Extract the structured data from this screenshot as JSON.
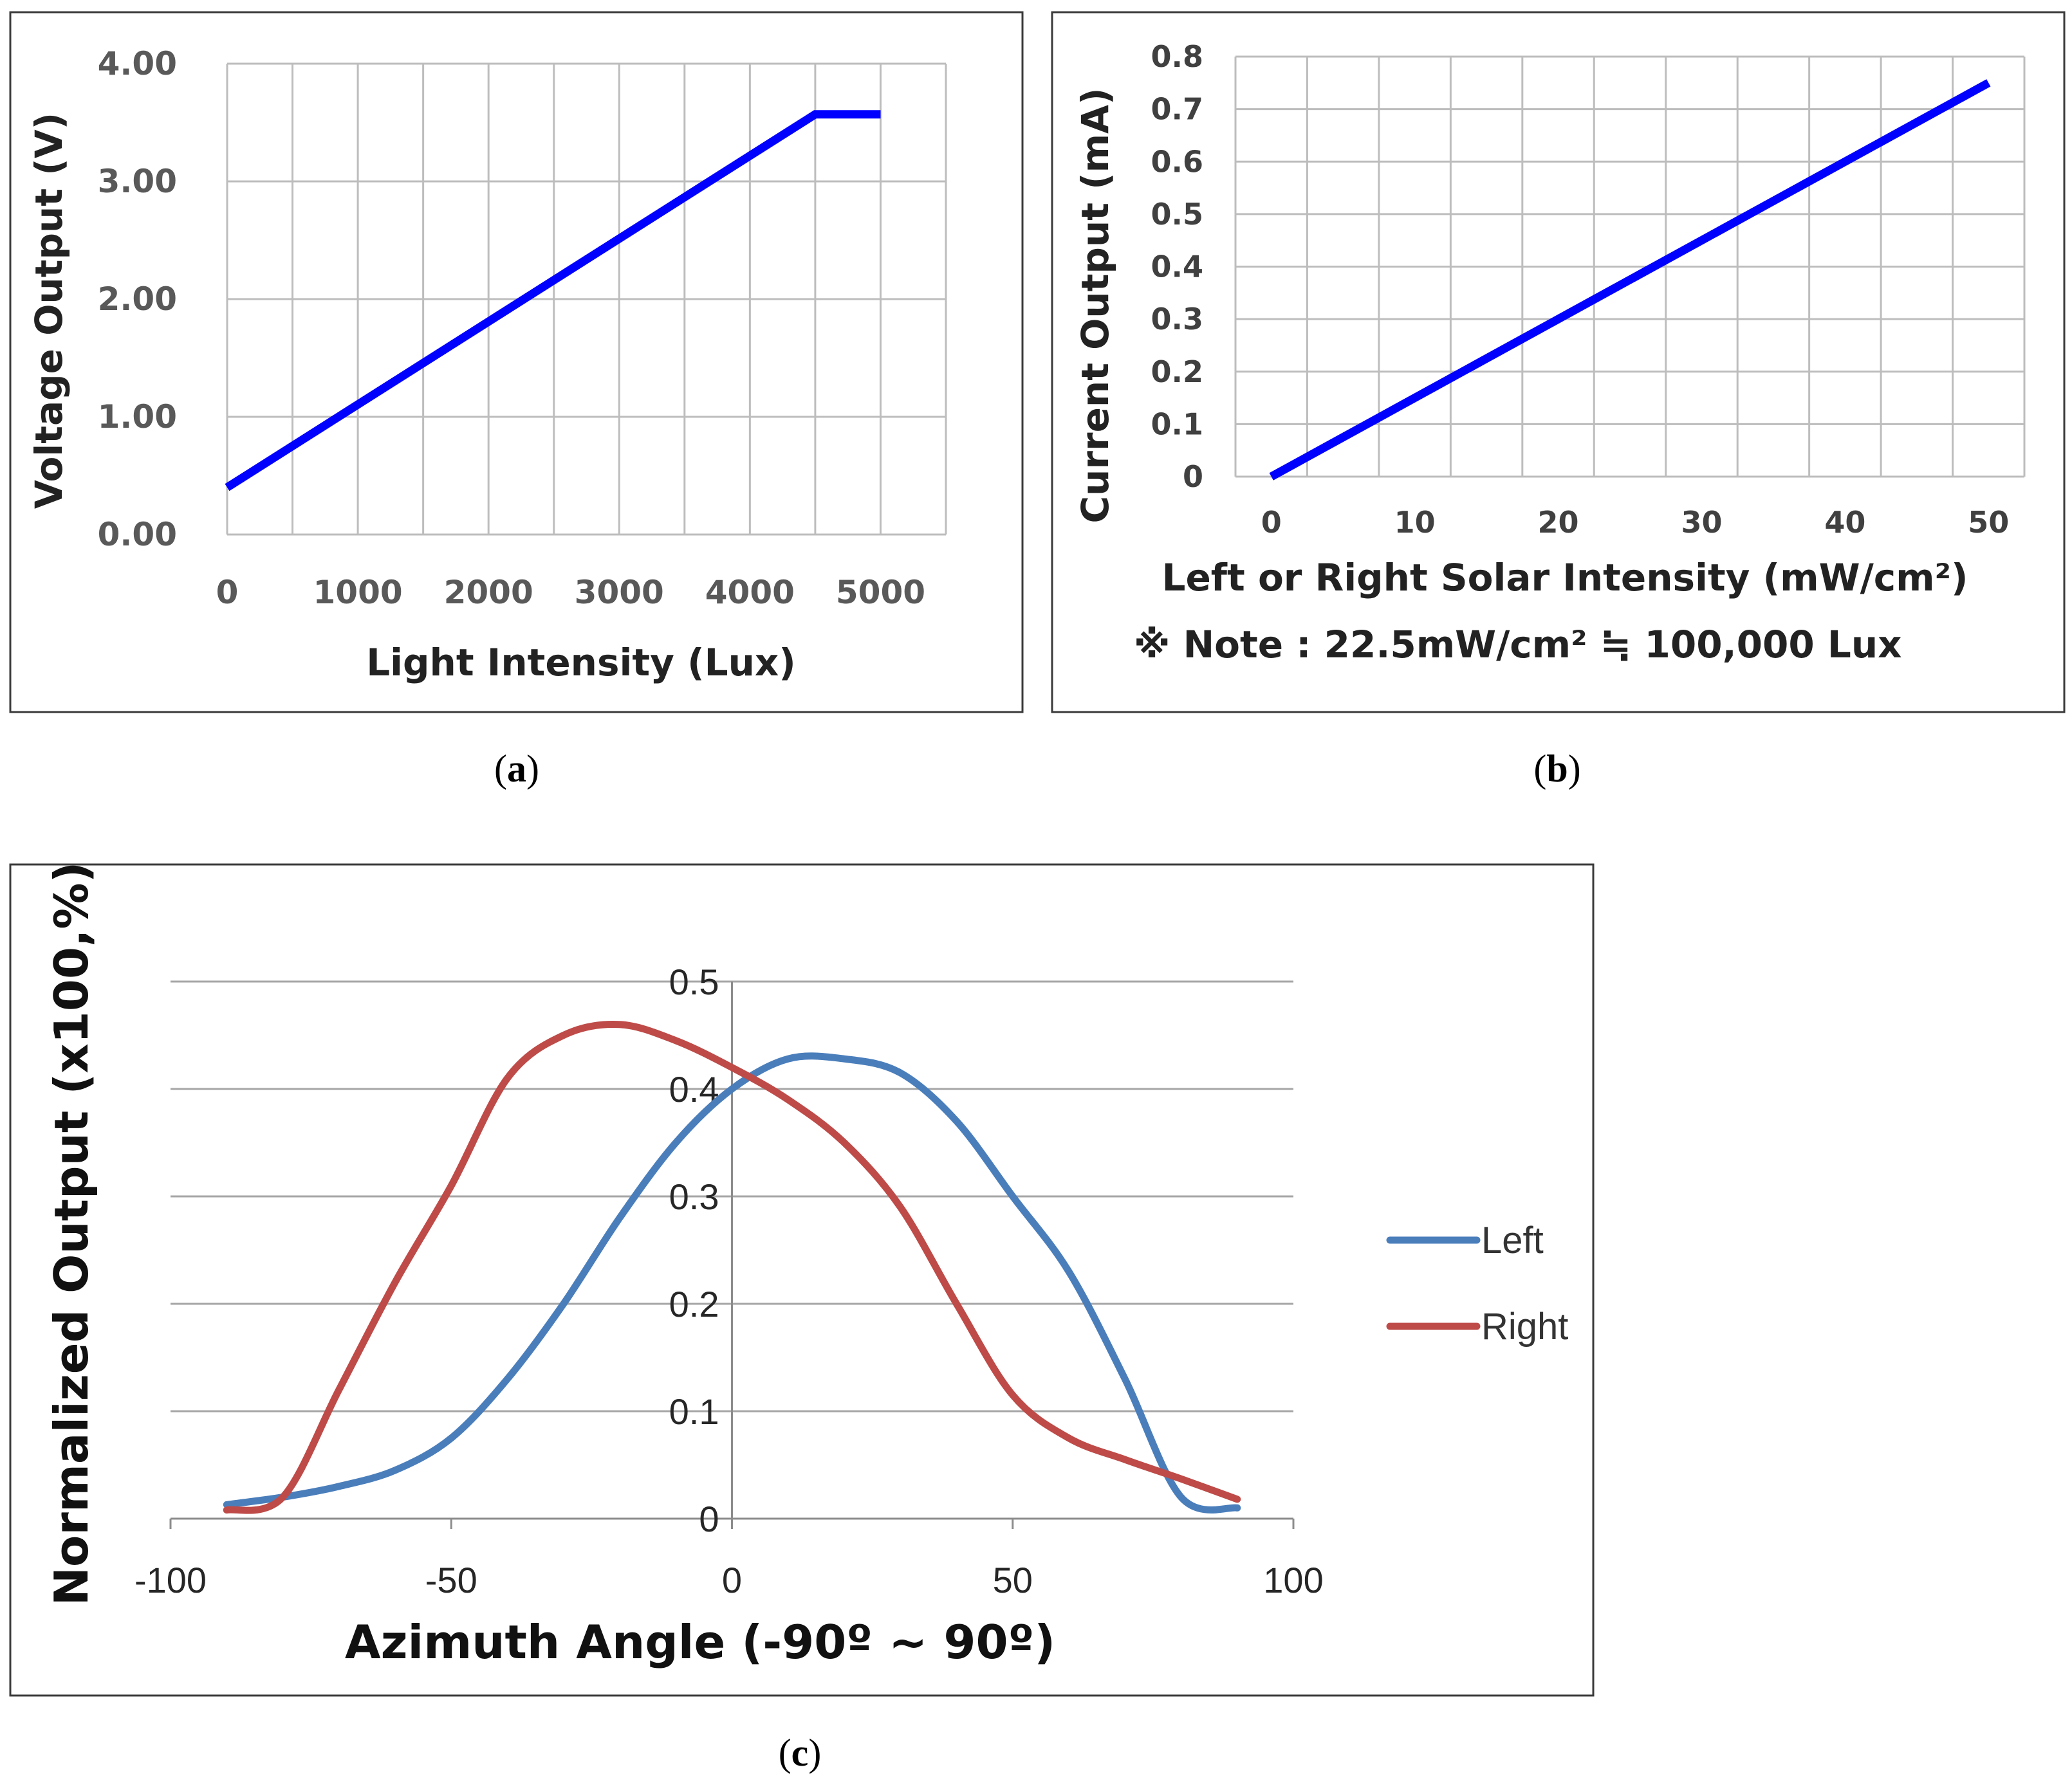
{
  "colors": {
    "series_blue": "#0000ff",
    "left_line": "#4a7ebb",
    "right_line": "#be4b48"
  },
  "panels": {
    "a": {
      "caption_letter": "a"
    },
    "b": {
      "caption_letter": "b",
      "note": "※ Note : 22.5mW/cm² ≒ 100,000 Lux"
    },
    "c": {
      "caption_letter": "c"
    }
  },
  "chart_data": [
    {
      "id": "a",
      "type": "line",
      "xlabel": "Light Intensity (Lux)",
      "ylabel": "Voltage Output (V)",
      "xlim": [
        0,
        5500
      ],
      "ylim": [
        0,
        4
      ],
      "x_ticks": [
        0,
        1000,
        2000,
        3000,
        4000,
        5000
      ],
      "y_ticks": [
        0,
        1,
        2,
        3,
        4
      ],
      "x_tick_labels": [
        "0",
        "1000",
        "2000",
        "3000",
        "4000",
        "5000"
      ],
      "y_tick_labels": [
        "0.00",
        "1.00",
        "2.00",
        "3.00",
        "4.00"
      ],
      "x_grid_step": 500,
      "series": [
        {
          "name": "Voltage",
          "x": [
            0,
            4500,
            5000
          ],
          "y": [
            0.4,
            3.57,
            3.57
          ]
        }
      ]
    },
    {
      "id": "b",
      "type": "line",
      "xlabel": "Left or Right Solar Intensity (mW/cm²)",
      "ylabel": "Current Output (mA)",
      "xlim": [
        -2.5,
        52.5
      ],
      "ylim": [
        0,
        0.8
      ],
      "x_ticks": [
        0,
        10,
        20,
        30,
        40,
        50
      ],
      "y_ticks": [
        0,
        0.1,
        0.2,
        0.3,
        0.4,
        0.5,
        0.6,
        0.7,
        0.8
      ],
      "x_tick_labels": [
        "0",
        "10",
        "20",
        "30",
        "40",
        "50"
      ],
      "y_tick_labels": [
        "0",
        "0.1",
        "0.2",
        "0.3",
        "0.4",
        "0.5",
        "0.6",
        "0.7",
        "0.8"
      ],
      "x_grid": [
        2.5,
        7.5,
        12.5,
        17.5,
        22.5,
        27.5,
        32.5,
        37.5,
        42.5,
        47.5,
        52.5
      ],
      "series": [
        {
          "name": "Current",
          "x": [
            0,
            50
          ],
          "y": [
            0.0,
            0.75
          ]
        }
      ]
    },
    {
      "id": "c",
      "type": "line",
      "xlabel": "Azimuth Angle (-90º ~ 90º)",
      "ylabel": "Normalized Output (x100,%)",
      "xlim": [
        -100,
        100
      ],
      "ylim": [
        0,
        0.5
      ],
      "x_ticks": [
        -100,
        -50,
        0,
        50,
        100
      ],
      "y_ticks": [
        0,
        0.1,
        0.2,
        0.3,
        0.4,
        0.5
      ],
      "x_tick_labels": [
        "-100",
        "-50",
        "0",
        "50",
        "100"
      ],
      "y_tick_labels": [
        "0",
        "0.1",
        "0.2",
        "0.3",
        "0.4",
        "0.5"
      ],
      "legend_position": "right",
      "series": [
        {
          "name": "Left",
          "x": [
            -90,
            -80,
            -70,
            -60,
            -50,
            -40,
            -30,
            -20,
            -10,
            0,
            10,
            20,
            30,
            40,
            50,
            60,
            70,
            80,
            90
          ],
          "y": [
            0.013,
            0.02,
            0.03,
            0.045,
            0.075,
            0.13,
            0.2,
            0.28,
            0.35,
            0.4,
            0.428,
            0.428,
            0.415,
            0.37,
            0.3,
            0.23,
            0.13,
            0.02,
            0.01
          ]
        },
        {
          "name": "Right",
          "x": [
            -90,
            -80,
            -70,
            -60,
            -50,
            -40,
            -30,
            -20,
            -10,
            0,
            10,
            20,
            30,
            40,
            50,
            60,
            70,
            80,
            90
          ],
          "y": [
            0.008,
            0.02,
            0.12,
            0.22,
            0.31,
            0.41,
            0.45,
            0.46,
            0.445,
            0.42,
            0.39,
            0.35,
            0.29,
            0.2,
            0.115,
            0.075,
            0.055,
            0.037,
            0.018
          ]
        }
      ]
    }
  ]
}
